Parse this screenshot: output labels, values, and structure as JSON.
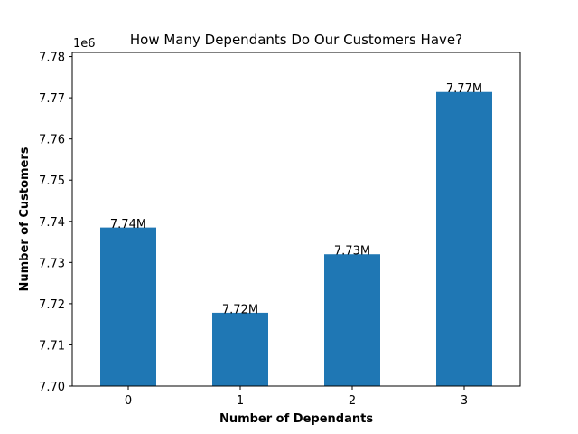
{
  "chart_data": {
    "type": "bar",
    "title": "How Many Dependants Do Our Customers Have?",
    "xlabel": "Number of Dependants",
    "ylabel": "Number of Customers",
    "y_offset_label": "1e6",
    "y_scale": 1000000,
    "categories": [
      "0",
      "1",
      "2",
      "3"
    ],
    "values": [
      7738500,
      7717800,
      7732000,
      7771400
    ],
    "data_labels": [
      "7.74M",
      "7.72M",
      "7.73M",
      "7.77M"
    ],
    "ylim": [
      7700000,
      7781000
    ],
    "y_ticks": [
      7700000,
      7710000,
      7720000,
      7730000,
      7740000,
      7750000,
      7760000,
      7770000,
      7780000
    ],
    "y_tick_labels": [
      "7.70",
      "7.71",
      "7.72",
      "7.73",
      "7.74",
      "7.75",
      "7.76",
      "7.77",
      "7.78"
    ],
    "grid": false,
    "legend": "none",
    "bar_color": "#1f77b4"
  }
}
